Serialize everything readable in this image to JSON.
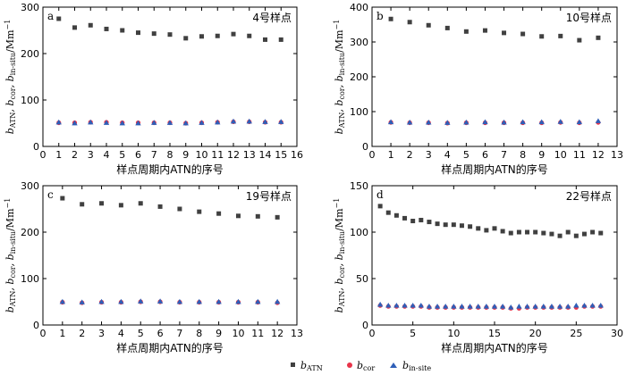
{
  "legend": {
    "atn": {
      "main": "b",
      "sub": "ATN"
    },
    "cor": {
      "main": "b",
      "sub": "cor"
    },
    "insite": {
      "main": "b",
      "sub": "in-site"
    }
  },
  "y_label": {
    "main": "b",
    "p1": "ATN",
    "p2": ", b",
    "p3": "cor",
    "p4": ", b",
    "p5": "in-situ",
    "p6": "/Mm",
    "p7": "−1"
  },
  "x_label": "样点周期内ATN的序号",
  "colors": {
    "atn": "#404040",
    "cor": "#e8344a",
    "insite": "#2f5fb8"
  },
  "chart_data": [
    {
      "type": "scatter",
      "panel_label": "a",
      "site_label": "4号样点",
      "xlim": [
        0,
        16
      ],
      "xticks": [
        0,
        1,
        2,
        3,
        4,
        5,
        6,
        7,
        8,
        9,
        10,
        11,
        12,
        13,
        14,
        15,
        16
      ],
      "ylim": [
        0,
        300
      ],
      "yticks": [
        0,
        100,
        200,
        300
      ],
      "x": [
        1,
        2,
        3,
        4,
        5,
        6,
        7,
        8,
        9,
        10,
        11,
        12,
        13,
        14,
        15
      ],
      "series": [
        {
          "name": "bATN",
          "values": [
            275,
            256,
            261,
            253,
            250,
            245,
            243,
            241,
            233,
            237,
            238,
            242,
            238,
            230,
            230
          ]
        },
        {
          "name": "bcor",
          "values": [
            51,
            51,
            52,
            52,
            51,
            51,
            51,
            51,
            50,
            51,
            52,
            53,
            53,
            52,
            52
          ]
        },
        {
          "name": "bin-site",
          "values": [
            52,
            50,
            52,
            51,
            50,
            50,
            51,
            51,
            50,
            51,
            52,
            54,
            54,
            53,
            53
          ]
        }
      ]
    },
    {
      "type": "scatter",
      "panel_label": "b",
      "site_label": "10号样点",
      "xlim": [
        0,
        13
      ],
      "xticks": [
        0,
        1,
        2,
        3,
        4,
        5,
        6,
        7,
        8,
        9,
        10,
        11,
        12,
        13
      ],
      "ylim": [
        0,
        400
      ],
      "yticks": [
        0,
        100,
        200,
        300,
        400
      ],
      "x": [
        1,
        2,
        3,
        4,
        5,
        6,
        7,
        8,
        9,
        10,
        11,
        12
      ],
      "series": [
        {
          "name": "bATN",
          "values": [
            366,
            357,
            348,
            340,
            330,
            333,
            326,
            323,
            316,
            317,
            305,
            312
          ]
        },
        {
          "name": "bcor",
          "values": [
            69,
            68,
            68,
            67,
            68,
            68,
            68,
            68,
            68,
            69,
            68,
            69
          ]
        },
        {
          "name": "bin-site",
          "values": [
            70,
            69,
            69,
            68,
            69,
            70,
            69,
            70,
            70,
            71,
            70,
            73
          ]
        }
      ]
    },
    {
      "type": "scatter",
      "panel_label": "c",
      "site_label": "19号样点",
      "xlim": [
        0,
        13
      ],
      "xticks": [
        0,
        1,
        2,
        3,
        4,
        5,
        6,
        7,
        8,
        9,
        10,
        11,
        12,
        13
      ],
      "ylim": [
        0,
        300
      ],
      "yticks": [
        0,
        100,
        200,
        300
      ],
      "x": [
        1,
        2,
        3,
        4,
        5,
        6,
        7,
        8,
        9,
        10,
        11,
        12
      ],
      "series": [
        {
          "name": "bATN",
          "values": [
            273,
            260,
            262,
            258,
            262,
            255,
            250,
            244,
            240,
            235,
            234,
            232
          ]
        },
        {
          "name": "bcor",
          "values": [
            49,
            48,
            49,
            49,
            50,
            50,
            49,
            49,
            49,
            49,
            49,
            48
          ]
        },
        {
          "name": "bin-site",
          "values": [
            50,
            49,
            50,
            50,
            51,
            51,
            50,
            50,
            50,
            50,
            50,
            50
          ]
        }
      ]
    },
    {
      "type": "scatter",
      "panel_label": "d",
      "site_label": "22号样点",
      "xlim": [
        0,
        30
      ],
      "xticks": [
        0,
        5,
        10,
        15,
        20,
        25,
        30
      ],
      "ylim": [
        0,
        150
      ],
      "yticks": [
        0,
        50,
        100,
        150
      ],
      "x": [
        1,
        2,
        3,
        4,
        5,
        6,
        7,
        8,
        9,
        10,
        11,
        12,
        13,
        14,
        15,
        16,
        17,
        18,
        19,
        20,
        21,
        22,
        23,
        24,
        25,
        26,
        27,
        28
      ],
      "series": [
        {
          "name": "bATN",
          "values": [
            128,
            121,
            118,
            115,
            112,
            113,
            111,
            109,
            108,
            108,
            107,
            106,
            104,
            102,
            104,
            101,
            99,
            100,
            100,
            100,
            99,
            98,
            96,
            100,
            96,
            98,
            100,
            99
          ]
        },
        {
          "name": "bcor",
          "values": [
            21,
            20,
            20,
            20,
            20,
            20,
            19,
            19,
            19,
            19,
            19,
            19,
            19,
            19,
            19,
            19,
            18,
            18,
            19,
            19,
            19,
            19,
            19,
            19,
            19,
            20,
            20,
            20
          ]
        },
        {
          "name": "bin-site",
          "values": [
            22,
            21,
            21,
            21,
            21,
            21,
            20,
            20,
            20,
            20,
            20,
            20,
            20,
            20,
            20,
            20,
            19,
            20,
            20,
            20,
            20,
            20,
            20,
            20,
            21,
            21,
            21,
            21
          ]
        }
      ]
    }
  ]
}
